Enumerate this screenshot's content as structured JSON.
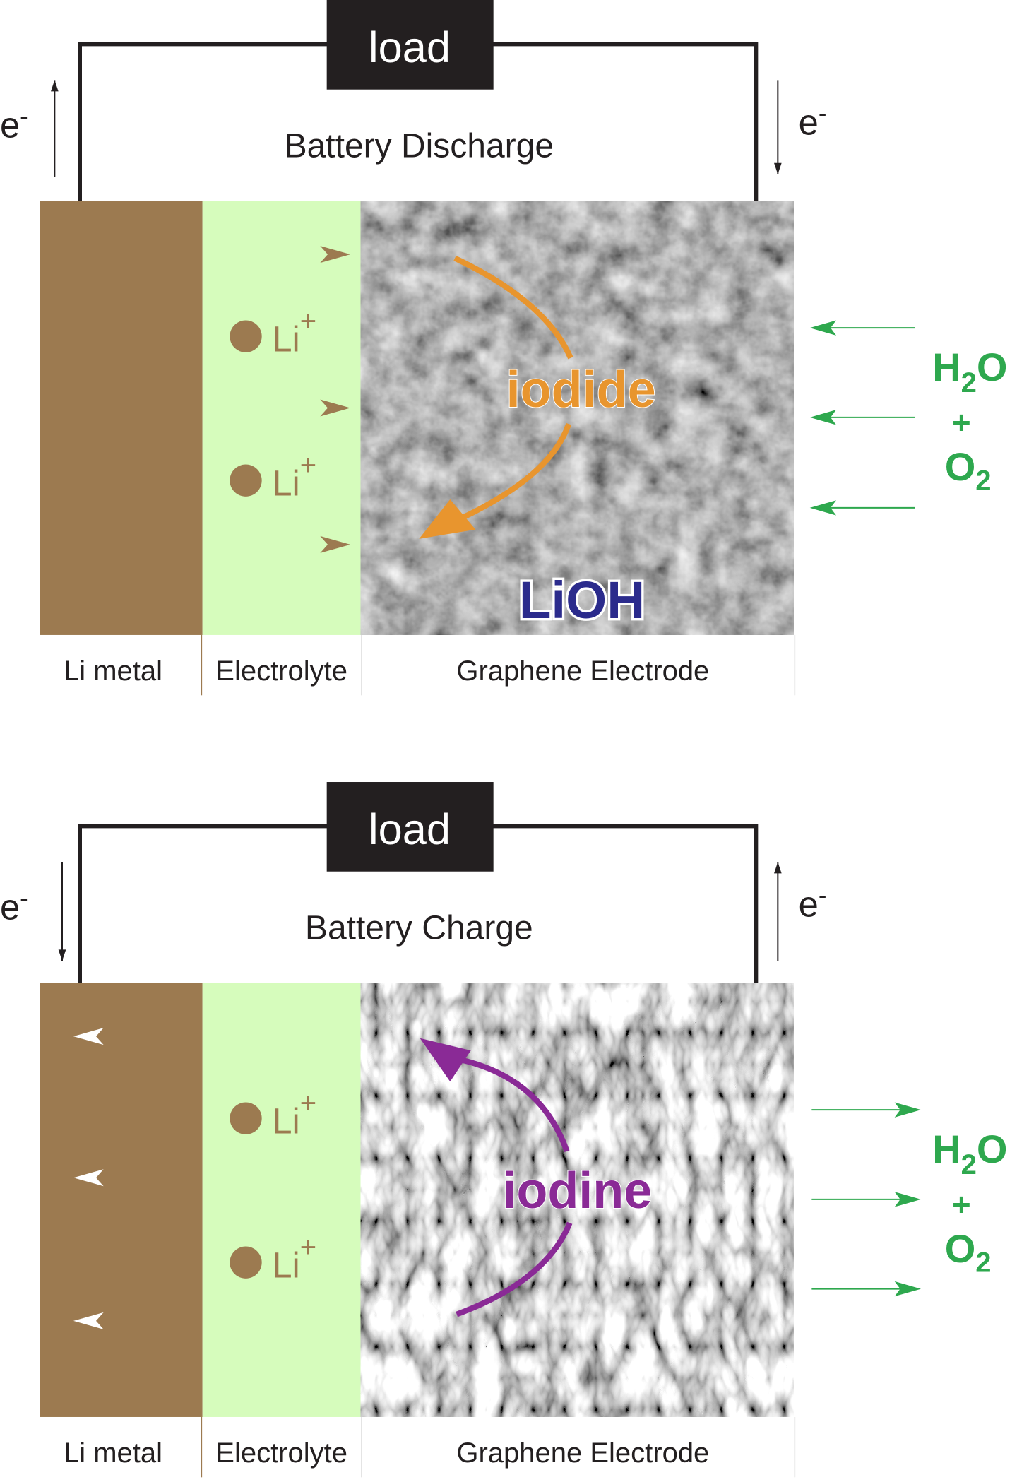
{
  "panels": [
    {
      "load": "load",
      "title": "Battery Discharge",
      "electron": "e",
      "electron_sup": "-",
      "ion": "Li",
      "ion_sup": "+",
      "species": "iodide",
      "product": "LiOH",
      "gas_h2o": "H",
      "gas_sub2": "2",
      "gas_o": "O",
      "gas_plus": "+",
      "gas_o2": "O",
      "gas_o2_sub": "2",
      "labels": [
        "Li metal",
        "Electrolyte",
        "Graphene Electrode"
      ],
      "direction": "discharge"
    },
    {
      "load": "load",
      "title": "Battery Charge",
      "electron": "e",
      "electron_sup": "-",
      "ion": "Li",
      "ion_sup": "+",
      "species": "iodine",
      "gas_h2o": "H",
      "gas_sub2": "2",
      "gas_o": "O",
      "gas_plus": "+",
      "gas_o2": "O",
      "gas_o2_sub": "2",
      "labels": [
        "Li metal",
        "Electrolyte",
        "Graphene Electrode"
      ],
      "direction": "charge"
    }
  ],
  "colors": {
    "li_metal": "#9c7a50",
    "electrolyte": "#d6fcbc",
    "iodide": "#e8952e",
    "iodine": "#8a2a96",
    "lioh": "#2b2b8c",
    "gas": "#2ea84e",
    "load_box": "#231f20"
  }
}
